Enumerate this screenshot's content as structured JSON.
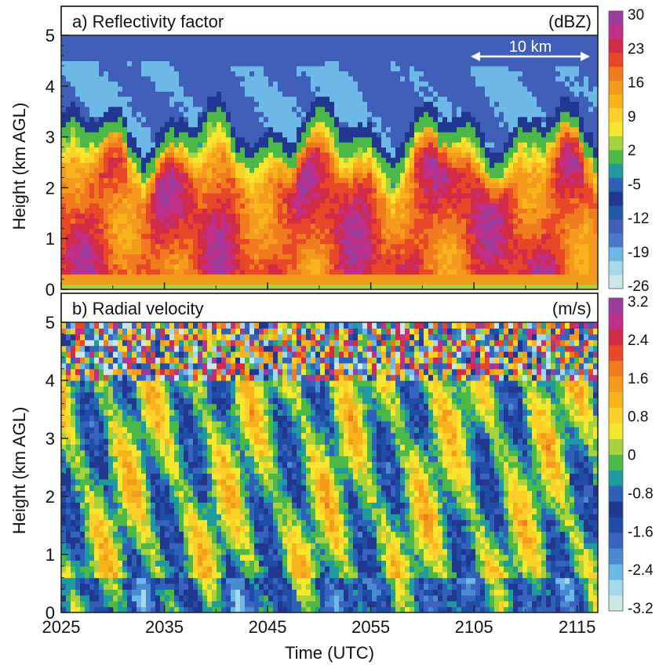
{
  "chart_data": [
    {
      "type": "heatmap",
      "panel_label": "a) Reflectivity factor",
      "units": "(dBZ)",
      "ylabel": "Height (km AGL)",
      "xlabel": "",
      "xlim": [
        2025,
        2117
      ],
      "ylim": [
        0,
        5
      ],
      "x_ticks": [
        "2025",
        "2035",
        "2045",
        "2055",
        "2105",
        "2115"
      ],
      "y_ticks": [
        "0",
        "1",
        "2",
        "3",
        "4",
        "5"
      ],
      "scale_bar": {
        "label": "10 km"
      },
      "colorbar": {
        "ticks": [
          "30",
          "23",
          "16",
          "9",
          "2",
          "-5",
          "-12",
          "-19",
          "-26"
        ],
        "colors": [
          "#cce8e6",
          "#a6d8ec",
          "#6cb8e6",
          "#4a79c8",
          "#3f5fb8",
          "#1e5aa8",
          "#223890",
          "#2e62b8",
          "#1e9aa0",
          "#4cb848",
          "#a8d23c",
          "#f6e72e",
          "#fcd028",
          "#f8b21c",
          "#f49a1c",
          "#f07a1e",
          "#e84828",
          "#d22c48",
          "#c03088",
          "#9c3c9c"
        ]
      },
      "description_values": {
        "layer_tops_km": 3.0,
        "cloud_tops_km": 4.5,
        "dominant_core_dBZ": 20
      }
    },
    {
      "type": "heatmap",
      "panel_label": "b) Radial velocity",
      "units": "(m/s)",
      "ylabel": "Height (km AGL)",
      "xlabel": "Time (UTC)",
      "xlim": [
        2025,
        2117
      ],
      "ylim": [
        0,
        5
      ],
      "x_ticks": [
        "2025",
        "2035",
        "2045",
        "2055",
        "2105",
        "2115"
      ],
      "y_ticks": [
        "0",
        "1",
        "2",
        "3",
        "4",
        "5"
      ],
      "colorbar": {
        "ticks": [
          "3.2",
          "2.4",
          "1.6",
          "0.8",
          "0",
          "-0.8",
          "-1.6",
          "-2.4",
          "-3.2"
        ],
        "colors": [
          "#cce8e6",
          "#a6d8ec",
          "#6cb8e6",
          "#4a8ad0",
          "#3a62c0",
          "#1e4ea8",
          "#223890",
          "#2e62b8",
          "#1e9aa0",
          "#4cb848",
          "#a8d23c",
          "#f6e72e",
          "#fcd028",
          "#f8b21c",
          "#f49a1c",
          "#f07a1e",
          "#e84828",
          "#d22c48",
          "#c03088",
          "#9c3c9c"
        ]
      }
    }
  ]
}
